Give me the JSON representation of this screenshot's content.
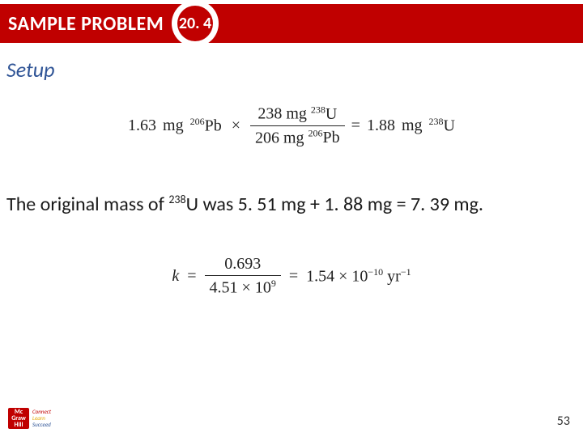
{
  "header": {
    "label": "SAMPLE PROBLEM",
    "number": "20. 4",
    "bar_color": "#c00000",
    "circle_outer_color": "#ffffff",
    "circle_inner_color": "#c00000",
    "text_color": "#ffffff"
  },
  "section_title": "Setup",
  "section_title_color": "#2f5496",
  "equation1": {
    "lhs_value": "1.63",
    "lhs_unit": "mg",
    "lhs_sup": "206",
    "lhs_sym": "Pb",
    "frac_num_value": "238",
    "frac_num_unit": "mg",
    "frac_num_sup": "238",
    "frac_num_sym": "U",
    "frac_den_value": "206",
    "frac_den_unit": "mg",
    "frac_den_sup": "206",
    "frac_den_sym": "Pb",
    "rhs_value": "1.88",
    "rhs_unit": "mg",
    "rhs_sup": "238",
    "rhs_sym": "U"
  },
  "body": {
    "prefix": "The original mass of ",
    "iso_sup": "238",
    "iso_sym": "U",
    "rest": " was 5. 51 mg + 1. 88 mg = 7. 39 mg."
  },
  "equation2": {
    "k": "k",
    "num": "0.693",
    "den_coeff": "4.51",
    "den_exp": "9",
    "rhs_coeff": "1.54",
    "rhs_exp": "−10",
    "unit": "yr",
    "unit_exp": "−1"
  },
  "footer": {
    "logo_lines": [
      "Mc",
      "Graw",
      "Hill"
    ],
    "tag_lines": [
      "Connect",
      "Learn",
      "Succeed"
    ],
    "page": "53"
  }
}
